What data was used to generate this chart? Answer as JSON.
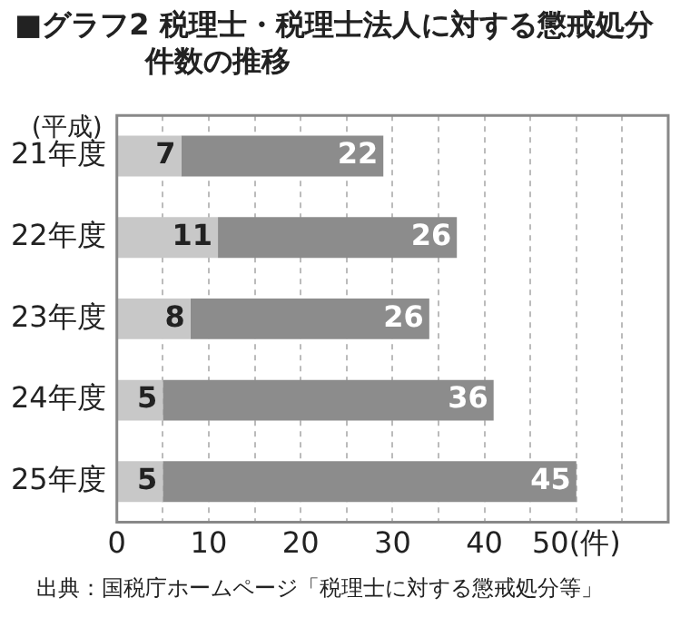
{
  "chart_data": {
    "type": "bar",
    "orientation": "horizontal",
    "stacked": true,
    "title": "■グラフ2 税理士・税理士法人に対する懲戒処分件数の推移",
    "ylabel": "(平成)",
    "categories": [
      "21年度",
      "22年度",
      "23年度",
      "24年度",
      "25年度"
    ],
    "series": [
      {
        "color": "#c8c8c8",
        "values": [
          7,
          11,
          8,
          5,
          5
        ]
      },
      {
        "color": "#8c8c8c",
        "values": [
          22,
          26,
          26,
          36,
          45
        ]
      }
    ],
    "xlim": [
      0,
      60
    ],
    "xticks": [
      0,
      {
        "value": 5,
        "label": null
      },
      10,
      {
        "value": 15,
        "label": null
      },
      20,
      {
        "value": 25,
        "label": null
      },
      30,
      {
        "value": 35,
        "label": null
      },
      40,
      {
        "value": 45,
        "label": null
      },
      {
        "value": 50,
        "label": "50(件)"
      },
      {
        "value": 55,
        "label": null
      }
    ],
    "grid": "x",
    "data_labels": true,
    "legend": false,
    "annotations": [
      "出典：国税庁ホームページ「税理士に対する懲戒処分等」"
    ]
  }
}
